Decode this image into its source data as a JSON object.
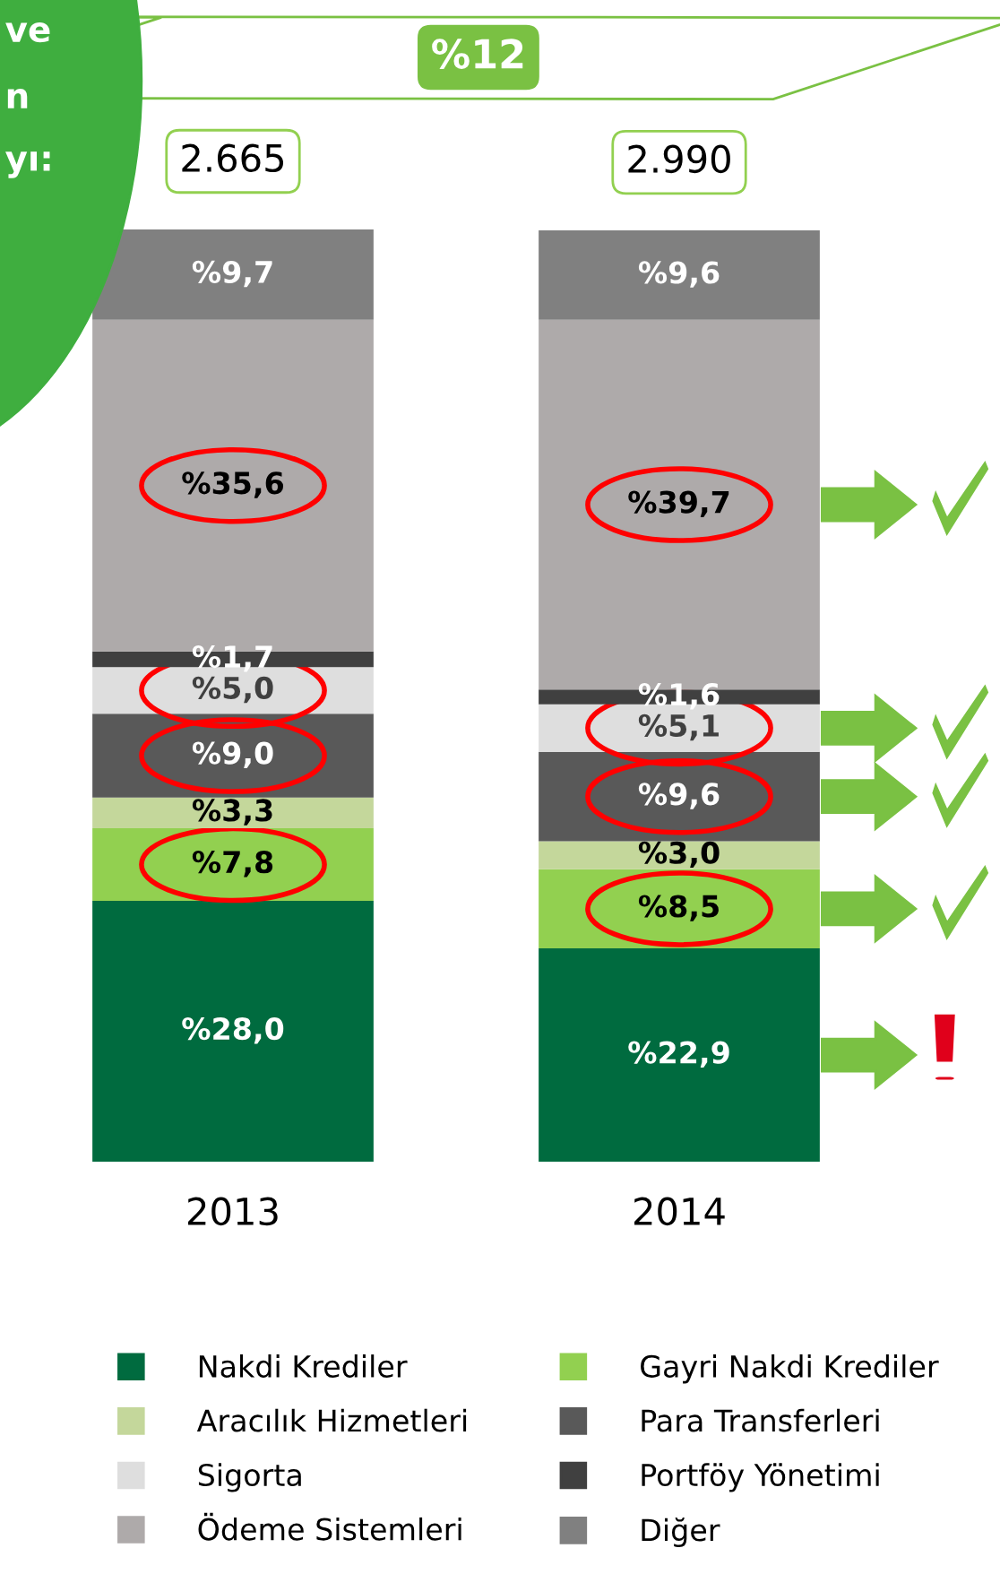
{
  "chart_data": {
    "type": "bar",
    "stacked": true,
    "data_labels": true,
    "tick_labels": "x",
    "categories": [
      "2013",
      "2014"
    ],
    "series": [
      {
        "name": "Nakdi Krediler",
        "color": "#006b3f",
        "values": [
          28.0,
          22.9
        ],
        "value_labels": [
          "%28,0",
          "%22,9"
        ]
      },
      {
        "name": "Gayri Nakdi Krediler",
        "color": "#92d050",
        "values": [
          7.8,
          8.5
        ],
        "value_labels": [
          "%7,8",
          "%8,5"
        ]
      },
      {
        "name": "Aracılık Hizmetleri",
        "color": "#c4d79b",
        "values": [
          3.3,
          3.0
        ],
        "value_labels": [
          "%3,3",
          "%3,0"
        ]
      },
      {
        "name": "Para Transferleri",
        "color": "#595959",
        "values": [
          9.0,
          9.6
        ],
        "value_labels": [
          "%9,0",
          "%9,6"
        ]
      },
      {
        "name": "Sigorta",
        "color": "#dedede",
        "values": [
          5.0,
          5.1
        ],
        "value_labels": [
          "%5,0",
          "%5,1"
        ]
      },
      {
        "name": "Portföy Yönetimi",
        "color": "#404040",
        "values": [
          1.7,
          1.6
        ],
        "value_labels": [
          "%1,7",
          "%1,6"
        ]
      },
      {
        "name": "Ödeme Sistemleri",
        "color": "#aeaaaa",
        "values": [
          35.6,
          39.7
        ],
        "value_labels": [
          "%35,6",
          "%39,7"
        ]
      },
      {
        "name": "Diğer",
        "color": "#808080",
        "values": [
          9.7,
          9.6
        ],
        "value_labels": [
          "%9,7",
          "%9,6"
        ]
      }
    ],
    "annotations": [
      "%12",
      "ve",
      "n",
      "yı:",
      {
        "text": "2.665",
        "x": "2013",
        "y": 100.1
      },
      {
        "text": "2.990",
        "x": "2014",
        "y": 100.0
      }
    ],
    "legend": "bottom"
  }
}
